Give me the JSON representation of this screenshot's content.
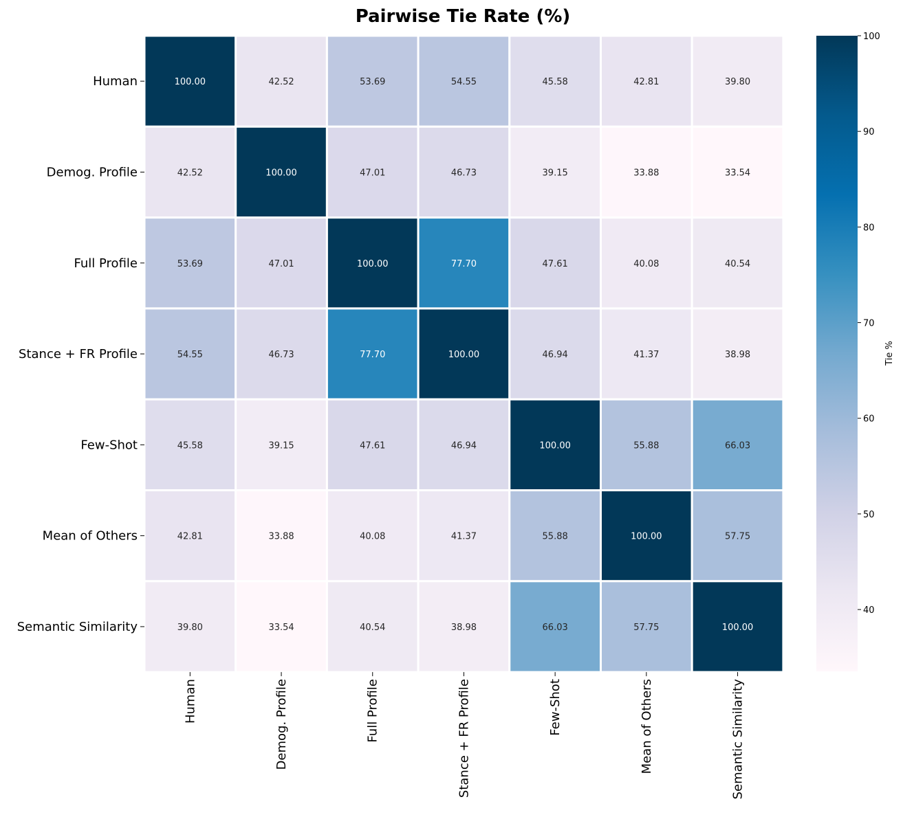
{
  "chart_data": {
    "type": "heatmap",
    "title": "Pairwise Tie Rate (%)",
    "row_labels": [
      "Human",
      "Demog. Profile",
      "Full Profile",
      "Stance + FR Profile",
      "Few-Shot",
      "Mean of Others",
      "Semantic Similarity"
    ],
    "col_labels": [
      "Human",
      "Demog. Profile",
      "Full Profile",
      "Stance + FR Profile",
      "Few-Shot",
      "Mean of Others",
      "Semantic Similarity"
    ],
    "values": [
      [
        100.0,
        42.52,
        53.69,
        54.55,
        45.58,
        42.81,
        39.8
      ],
      [
        42.52,
        100.0,
        47.01,
        46.73,
        39.15,
        33.88,
        33.54
      ],
      [
        53.69,
        47.01,
        100.0,
        77.7,
        47.61,
        40.08,
        40.54
      ],
      [
        54.55,
        46.73,
        77.7,
        100.0,
        46.94,
        41.37,
        38.98
      ],
      [
        45.58,
        39.15,
        47.61,
        46.94,
        100.0,
        55.88,
        66.03
      ],
      [
        42.81,
        33.88,
        40.08,
        41.37,
        55.88,
        100.0,
        57.75
      ],
      [
        39.8,
        33.54,
        40.54,
        38.98,
        66.03,
        57.75,
        100.0
      ]
    ],
    "value_format": "2 decimals",
    "colormap": "PuBu",
    "colorbar": {
      "label": "Tie %",
      "range": [
        33.54,
        100
      ],
      "ticks": [
        40,
        50,
        60,
        70,
        80,
        90,
        100
      ]
    }
  }
}
